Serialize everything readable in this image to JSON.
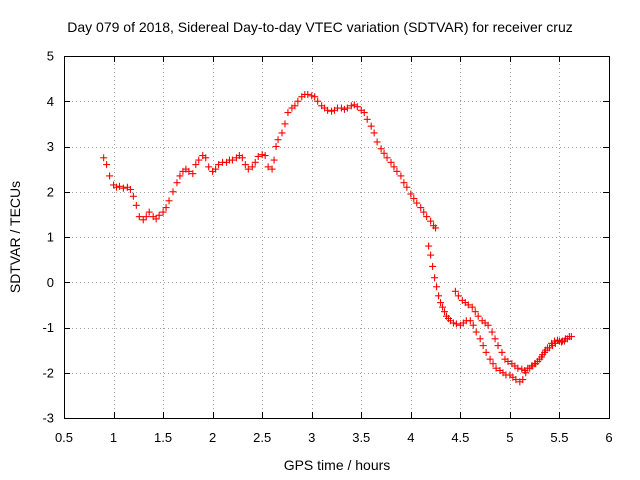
{
  "chart_data": {
    "type": "scatter",
    "title": "Day 079 of 2018, Sidereal Day-to-day VTEC variation (SDTVAR) for receiver cruz",
    "xlabel": "GPS time / hours",
    "ylabel": "SDTVAR / TECUs",
    "xlim": [
      0.5,
      6
    ],
    "ylim": [
      -3,
      5
    ],
    "xticks": [
      0.5,
      1,
      1.5,
      2,
      2.5,
      3,
      3.5,
      4,
      4.5,
      5,
      5.5,
      6
    ],
    "yticks": [
      -3,
      -2,
      -1,
      0,
      1,
      2,
      3,
      4,
      5
    ],
    "xtick_labels": [
      "0.5",
      "1",
      "1.5",
      "2",
      "2.5",
      "3",
      "3.5",
      "4",
      "4.5",
      "5",
      "5.5",
      "6"
    ],
    "ytick_labels": [
      "-3",
      "-2",
      "-1",
      "0",
      "1",
      "2",
      "3",
      "4",
      "5"
    ],
    "grid": true,
    "marker": "+",
    "color": "#ff0000",
    "series": [
      {
        "name": "SDTVAR",
        "x": [
          0.9,
          0.93,
          0.96,
          1.0,
          1.03,
          1.06,
          1.1,
          1.14,
          1.17,
          1.2,
          1.23,
          1.26,
          1.3,
          1.33,
          1.36,
          1.4,
          1.43,
          1.46,
          1.5,
          1.53,
          1.56,
          1.6,
          1.64,
          1.67,
          1.7,
          1.73,
          1.76,
          1.8,
          1.83,
          1.86,
          1.9,
          1.93,
          1.96,
          2.0,
          2.03,
          2.06,
          2.1,
          2.14,
          2.17,
          2.2,
          2.24,
          2.27,
          2.3,
          2.33,
          2.36,
          2.4,
          2.43,
          2.46,
          2.5,
          2.53,
          2.56,
          2.6,
          2.62,
          2.64,
          2.66,
          2.7,
          2.73,
          2.76,
          2.8,
          2.83,
          2.86,
          2.9,
          2.93,
          2.96,
          3.0,
          3.03,
          3.06,
          3.1,
          3.13,
          3.16,
          3.2,
          3.23,
          3.26,
          3.3,
          3.33,
          3.36,
          3.4,
          3.43,
          3.46,
          3.5,
          3.53,
          3.56,
          3.6,
          3.63,
          3.66,
          3.7,
          3.73,
          3.76,
          3.8,
          3.83,
          3.86,
          3.9,
          3.93,
          3.96,
          4.0,
          4.03,
          4.06,
          4.1,
          4.13,
          4.16,
          4.2,
          4.23,
          4.25,
          4.18,
          4.2,
          4.22,
          4.24,
          4.26,
          4.28,
          4.3,
          4.32,
          4.34,
          4.36,
          4.38,
          4.4,
          4.43,
          4.46,
          4.5,
          4.53,
          4.56,
          4.6,
          4.63,
          4.66,
          4.7,
          4.73,
          4.76,
          4.8,
          4.83,
          4.86,
          4.9,
          4.93,
          4.96,
          5.0,
          5.03,
          5.06,
          5.1,
          5.13,
          5.16,
          5.2,
          5.23,
          5.26,
          5.3,
          5.33,
          5.36,
          5.4,
          5.43,
          5.46,
          5.5,
          5.53,
          5.56,
          5.6,
          4.45,
          4.48,
          4.52,
          4.55,
          4.58,
          4.62,
          4.65,
          4.68,
          4.72,
          4.75,
          4.78,
          4.82,
          4.85,
          4.88,
          4.92,
          4.95,
          4.98,
          5.02,
          5.05,
          5.08,
          5.12,
          5.15,
          5.18,
          5.22,
          5.25,
          5.28,
          5.32,
          5.35,
          5.38,
          5.42,
          5.45,
          5.48,
          5.52,
          5.55,
          5.58,
          5.62
        ],
        "y": [
          2.75,
          2.6,
          2.35,
          2.15,
          2.1,
          2.12,
          2.08,
          2.1,
          2.05,
          1.9,
          1.7,
          1.45,
          1.38,
          1.45,
          1.55,
          1.45,
          1.4,
          1.48,
          1.55,
          1.65,
          1.8,
          2.0,
          2.2,
          2.35,
          2.45,
          2.5,
          2.45,
          2.4,
          2.6,
          2.7,
          2.8,
          2.75,
          2.55,
          2.45,
          2.5,
          2.6,
          2.65,
          2.65,
          2.7,
          2.7,
          2.75,
          2.8,
          2.75,
          2.6,
          2.5,
          2.55,
          2.65,
          2.78,
          2.82,
          2.8,
          2.55,
          2.5,
          2.7,
          3.0,
          3.15,
          3.3,
          3.5,
          3.75,
          3.85,
          3.9,
          4.0,
          4.1,
          4.15,
          4.15,
          4.12,
          4.1,
          4.0,
          3.9,
          3.85,
          3.8,
          3.78,
          3.8,
          3.85,
          3.85,
          3.82,
          3.85,
          3.9,
          3.92,
          3.88,
          3.8,
          3.75,
          3.6,
          3.45,
          3.3,
          3.1,
          2.95,
          2.85,
          2.75,
          2.65,
          2.55,
          2.45,
          2.35,
          2.2,
          2.1,
          1.95,
          1.85,
          1.75,
          1.65,
          1.55,
          1.45,
          1.35,
          1.25,
          1.2,
          0.8,
          0.6,
          0.35,
          0.1,
          -0.1,
          -0.3,
          -0.45,
          -0.55,
          -0.65,
          -0.75,
          -0.8,
          -0.85,
          -0.9,
          -0.92,
          -0.95,
          -0.9,
          -0.85,
          -0.85,
          -0.95,
          -1.1,
          -1.25,
          -1.4,
          -1.55,
          -1.7,
          -1.8,
          -1.9,
          -1.95,
          -2.0,
          -2.05,
          -2.05,
          -2.1,
          -2.15,
          -2.2,
          -2.15,
          -2.0,
          -1.9,
          -1.85,
          -1.8,
          -1.7,
          -1.6,
          -1.5,
          -1.45,
          -1.4,
          -1.35,
          -1.3,
          -1.3,
          -1.25,
          -1.2,
          -0.2,
          -0.3,
          -0.4,
          -0.45,
          -0.5,
          -0.55,
          -0.65,
          -0.75,
          -0.85,
          -0.9,
          -0.95,
          -1.1,
          -1.25,
          -1.4,
          -1.55,
          -1.7,
          -1.75,
          -1.8,
          -1.85,
          -1.9,
          -1.92,
          -1.95,
          -1.9,
          -1.85,
          -1.8,
          -1.75,
          -1.65,
          -1.55,
          -1.45,
          -1.35,
          -1.3,
          -1.28,
          -1.32,
          -1.3,
          -1.25,
          -1.2
        ]
      }
    ]
  }
}
